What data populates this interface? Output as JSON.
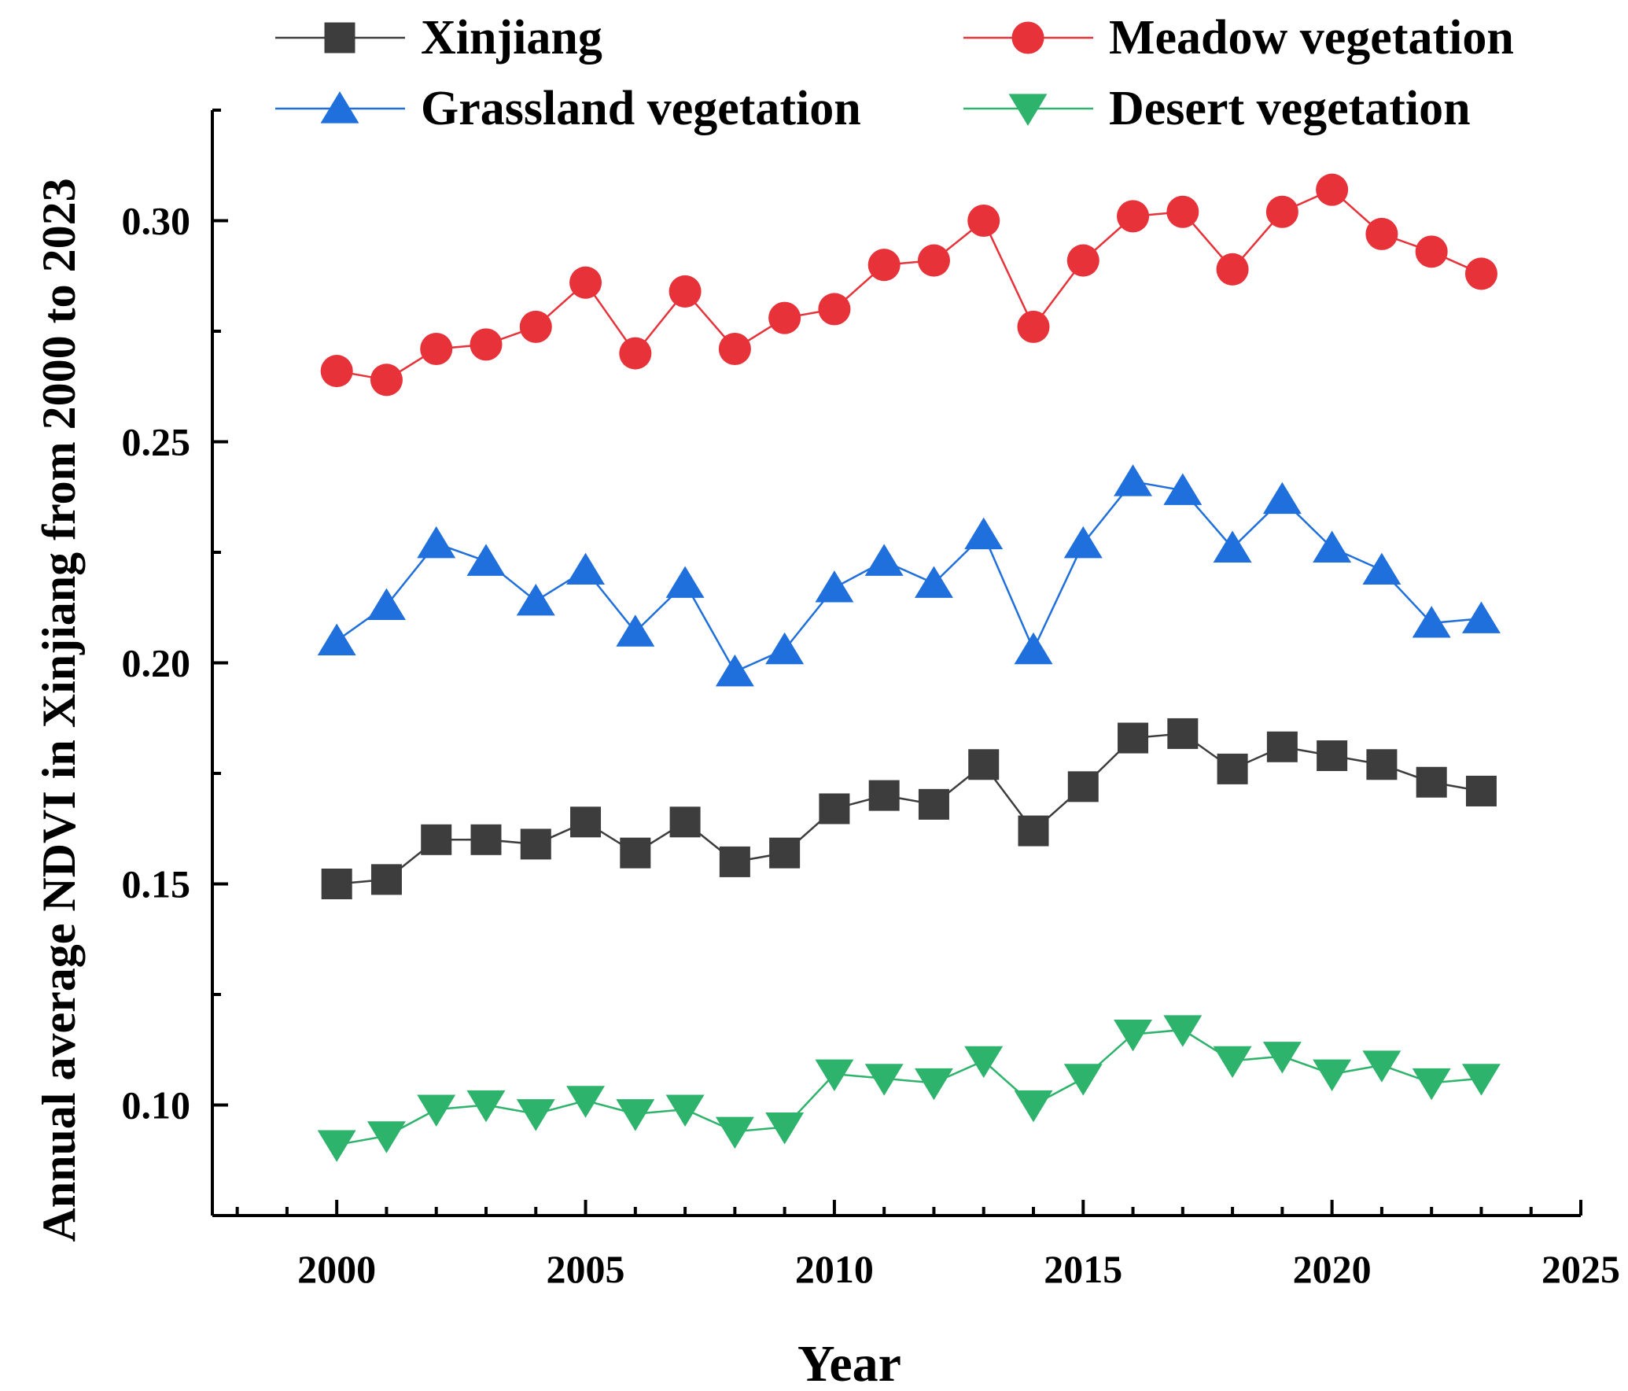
{
  "chart_data": {
    "type": "line",
    "title": "",
    "xlabel": "Year",
    "ylabel": "Annual average NDVI in Xinjiang from 2000 to 2023",
    "xlim": [
      1997.5,
      2025
    ],
    "ylim": [
      0.075,
      0.325
    ],
    "x_ticks": [
      2000,
      2005,
      2010,
      2015,
      2020,
      2025
    ],
    "y_ticks": [
      0.1,
      0.15,
      0.2,
      0.25,
      0.3
    ],
    "y_tick_labels": [
      "0.10",
      "0.15",
      "0.20",
      "0.25",
      "0.30"
    ],
    "legend_position": "top",
    "x": [
      2000,
      2001,
      2002,
      2003,
      2004,
      2005,
      2006,
      2007,
      2008,
      2009,
      2010,
      2011,
      2012,
      2013,
      2014,
      2015,
      2016,
      2017,
      2018,
      2019,
      2020,
      2021,
      2022,
      2023
    ],
    "series": [
      {
        "name": "Xinjiang",
        "marker": "square",
        "color": "#3d3d3d",
        "values": [
          0.15,
          0.151,
          0.16,
          0.16,
          0.159,
          0.164,
          0.157,
          0.164,
          0.155,
          0.157,
          0.167,
          0.17,
          0.168,
          0.177,
          0.162,
          0.172,
          0.183,
          0.184,
          0.176,
          0.181,
          0.179,
          0.177,
          0.173,
          0.171
        ]
      },
      {
        "name": "Meadow vegetation",
        "marker": "circle",
        "color": "#e8323a",
        "values": [
          0.266,
          0.264,
          0.271,
          0.272,
          0.276,
          0.286,
          0.27,
          0.284,
          0.271,
          0.278,
          0.28,
          0.29,
          0.291,
          0.3,
          0.276,
          0.291,
          0.301,
          0.302,
          0.289,
          0.302,
          0.307,
          0.297,
          0.293,
          0.288
        ]
      },
      {
        "name": "Grassland vegetation",
        "marker": "triangle-up",
        "color": "#1f6fdc",
        "values": [
          0.205,
          0.213,
          0.227,
          0.223,
          0.214,
          0.221,
          0.207,
          0.218,
          0.198,
          0.203,
          0.217,
          0.223,
          0.218,
          0.229,
          0.203,
          0.227,
          0.241,
          0.239,
          0.226,
          0.237,
          0.226,
          0.221,
          0.209,
          0.21
        ]
      },
      {
        "name": "Desert vegetation",
        "marker": "triangle-down",
        "color": "#2db36b",
        "values": [
          0.091,
          0.093,
          0.099,
          0.1,
          0.098,
          0.101,
          0.098,
          0.099,
          0.094,
          0.095,
          0.107,
          0.106,
          0.105,
          0.11,
          0.1,
          0.106,
          0.116,
          0.117,
          0.11,
          0.111,
          0.107,
          0.109,
          0.105,
          0.106
        ]
      }
    ]
  }
}
